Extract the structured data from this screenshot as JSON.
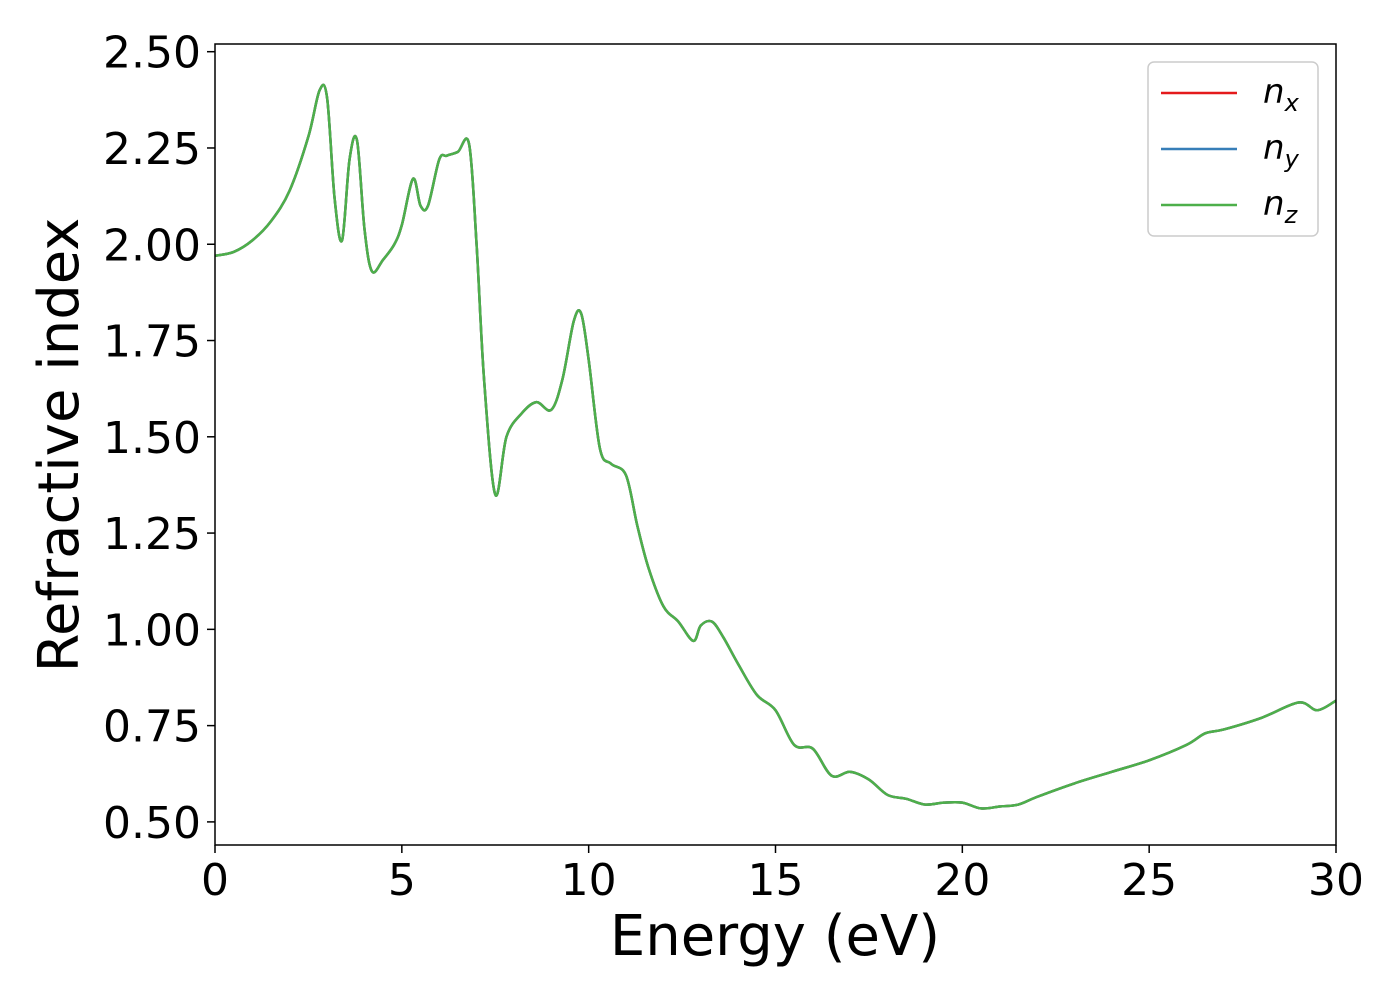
{
  "chart_data": {
    "type": "line",
    "title": "",
    "xlabel": "Energy (eV)",
    "ylabel": "Refractive index",
    "xlim": [
      0,
      30
    ],
    "ylim": [
      0.44,
      2.52
    ],
    "xticks": [
      0,
      5,
      10,
      15,
      20,
      25,
      30
    ],
    "xtick_labels": [
      "0",
      "5",
      "10",
      "15",
      "20",
      "25",
      "30"
    ],
    "yticks": [
      0.5,
      0.75,
      1.0,
      1.25,
      1.5,
      1.75,
      2.0,
      2.25,
      2.5
    ],
    "ytick_labels": [
      "0.50",
      "0.75",
      "1.00",
      "1.25",
      "1.50",
      "1.75",
      "2.00",
      "2.25",
      "2.50"
    ],
    "grid": false,
    "legend_placement": "top-right",
    "x": [
      0,
      0.5,
      1.0,
      1.5,
      2.0,
      2.5,
      2.8,
      3.0,
      3.2,
      3.4,
      3.6,
      3.8,
      4.0,
      4.2,
      4.5,
      4.8,
      5.0,
      5.3,
      5.5,
      5.7,
      6.0,
      6.2,
      6.5,
      6.8,
      7.0,
      7.2,
      7.5,
      7.8,
      8.2,
      8.6,
      9.0,
      9.3,
      9.6,
      9.8,
      10.0,
      10.3,
      10.6,
      11.0,
      11.3,
      11.6,
      12.0,
      12.4,
      12.8,
      13.0,
      13.3,
      13.6,
      14.0,
      14.5,
      15.0,
      15.5,
      16.0,
      16.5,
      17.0,
      17.5,
      18.0,
      18.5,
      19.0,
      19.5,
      20.0,
      20.5,
      21.0,
      21.5,
      22.0,
      23.0,
      24.0,
      25.0,
      26.0,
      26.5,
      27.0,
      28.0,
      29.0,
      29.5,
      30.0
    ],
    "series": [
      {
        "name": "n_x",
        "color": "#e41a1c",
        "values": [
          1.97,
          1.98,
          2.01,
          2.06,
          2.14,
          2.28,
          2.4,
          2.38,
          2.12,
          2.01,
          2.22,
          2.27,
          2.04,
          1.93,
          1.96,
          2.0,
          2.05,
          2.17,
          2.1,
          2.1,
          2.22,
          2.23,
          2.24,
          2.26,
          2.0,
          1.65,
          1.35,
          1.5,
          1.56,
          1.59,
          1.57,
          1.65,
          1.8,
          1.82,
          1.7,
          1.47,
          1.43,
          1.4,
          1.27,
          1.16,
          1.06,
          1.02,
          0.97,
          1.01,
          1.02,
          0.98,
          0.91,
          0.83,
          0.79,
          0.7,
          0.69,
          0.62,
          0.63,
          0.61,
          0.57,
          0.56,
          0.545,
          0.55,
          0.55,
          0.535,
          0.54,
          0.545,
          0.565,
          0.6,
          0.63,
          0.66,
          0.7,
          0.73,
          0.74,
          0.77,
          0.81,
          0.79,
          0.815
        ]
      },
      {
        "name": "n_y",
        "color": "#377eb8",
        "values": [
          1.97,
          1.98,
          2.01,
          2.06,
          2.14,
          2.28,
          2.4,
          2.38,
          2.12,
          2.01,
          2.22,
          2.27,
          2.04,
          1.93,
          1.96,
          2.0,
          2.05,
          2.17,
          2.1,
          2.1,
          2.22,
          2.23,
          2.24,
          2.26,
          2.0,
          1.65,
          1.35,
          1.5,
          1.56,
          1.59,
          1.57,
          1.65,
          1.8,
          1.82,
          1.7,
          1.47,
          1.43,
          1.4,
          1.27,
          1.16,
          1.06,
          1.02,
          0.97,
          1.01,
          1.02,
          0.98,
          0.91,
          0.83,
          0.79,
          0.7,
          0.69,
          0.62,
          0.63,
          0.61,
          0.57,
          0.56,
          0.545,
          0.55,
          0.55,
          0.535,
          0.54,
          0.545,
          0.565,
          0.6,
          0.63,
          0.66,
          0.7,
          0.73,
          0.74,
          0.77,
          0.81,
          0.79,
          0.815
        ]
      },
      {
        "name": "n_z",
        "color": "#4daf4a",
        "values": [
          1.97,
          1.98,
          2.01,
          2.06,
          2.14,
          2.28,
          2.4,
          2.38,
          2.12,
          2.01,
          2.22,
          2.27,
          2.04,
          1.93,
          1.96,
          2.0,
          2.05,
          2.17,
          2.1,
          2.1,
          2.22,
          2.23,
          2.24,
          2.26,
          2.0,
          1.65,
          1.35,
          1.5,
          1.56,
          1.59,
          1.57,
          1.65,
          1.8,
          1.82,
          1.7,
          1.47,
          1.43,
          1.4,
          1.27,
          1.16,
          1.06,
          1.02,
          0.97,
          1.01,
          1.02,
          0.98,
          0.91,
          0.83,
          0.79,
          0.7,
          0.69,
          0.62,
          0.63,
          0.61,
          0.57,
          0.56,
          0.545,
          0.55,
          0.55,
          0.535,
          0.54,
          0.545,
          0.565,
          0.6,
          0.63,
          0.66,
          0.7,
          0.73,
          0.74,
          0.77,
          0.81,
          0.79,
          0.815
        ]
      }
    ],
    "legend": [
      {
        "base": "n",
        "sub": "x",
        "color": "#e41a1c"
      },
      {
        "base": "n",
        "sub": "y",
        "color": "#377eb8"
      },
      {
        "base": "n",
        "sub": "z",
        "color": "#4daf4a"
      }
    ]
  }
}
